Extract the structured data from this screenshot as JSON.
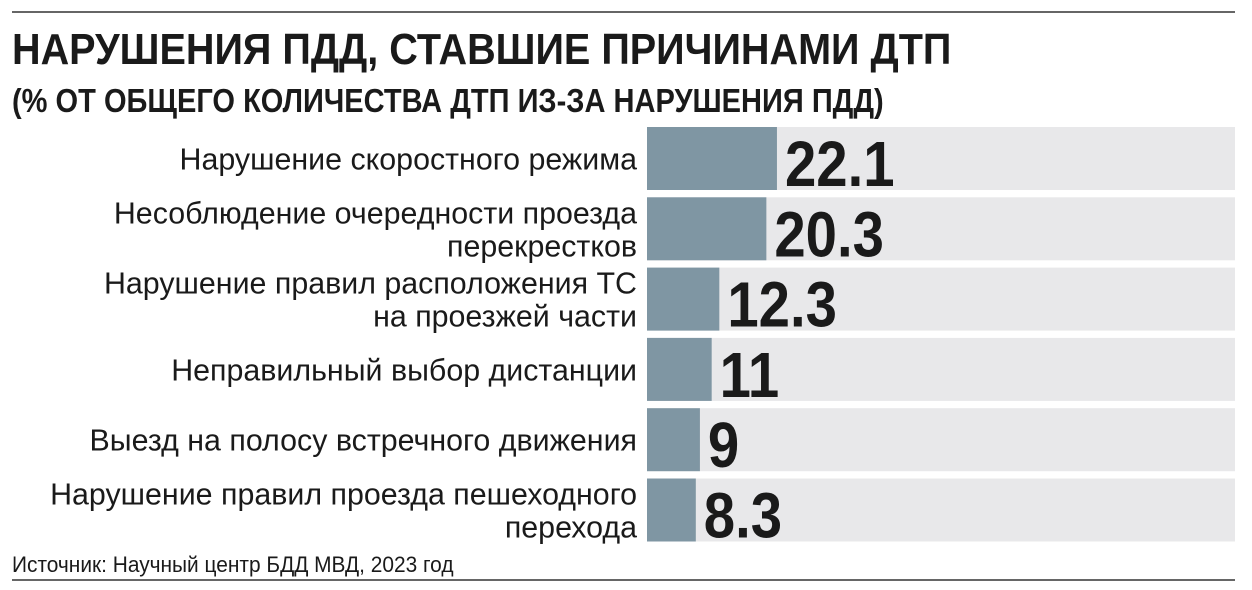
{
  "chart_data": {
    "type": "bar",
    "orientation": "horizontal",
    "title": "НАРУШЕНИЯ ПДД, СТАВШИЕ ПРИЧИНАМИ ДТП",
    "subtitle": "(% ОТ ОБЩЕГО КОЛИЧЕСТВА ДТП ИЗ-ЗА НАРУШЕНИЯ ПДД)",
    "categories": [
      [
        "Нарушение скоростного режима"
      ],
      [
        "Несоблюдение очередности проезда",
        "перекрестков"
      ],
      [
        "Нарушение правил расположения ТС",
        "на проезжей части"
      ],
      [
        "Неправильный выбор дистанции"
      ],
      [
        "Выезд на полосу встречного движения"
      ],
      [
        "Нарушение правил проезда пешеходного",
        "перехода"
      ]
    ],
    "values": [
      22.1,
      20.3,
      12.3,
      11,
      9,
      8.3
    ],
    "color": "#7f96a3",
    "background_color": "#e8e8ea",
    "xlim": [
      0,
      100
    ],
    "source": "Источник: Научный центр БДД МВД, 2023 год"
  }
}
